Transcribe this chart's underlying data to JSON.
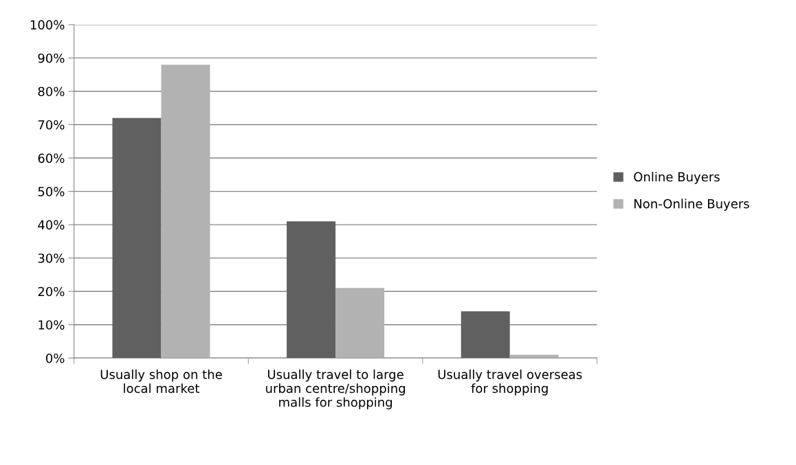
{
  "chart_data": {
    "type": "bar",
    "categories": [
      "Usually shop on the\nlocal market",
      "Usually travel to large\nurban centre/shopping\nmalls for shopping",
      "Usually travel overseas\nfor shopping"
    ],
    "series": [
      {
        "name": "Online Buyers",
        "color": "#606060",
        "values": [
          72,
          41,
          14
        ]
      },
      {
        "name": "Non-Online Buyers",
        "color": "#b2b2b2",
        "values": [
          88,
          21,
          1
        ]
      }
    ],
    "ylim": [
      0,
      100
    ],
    "yticks": [
      {
        "value": 0,
        "label": "0%"
      },
      {
        "value": 10,
        "label": "10%"
      },
      {
        "value": 20,
        "label": "20%"
      },
      {
        "value": 30,
        "label": "30%"
      },
      {
        "value": 40,
        "label": "40%"
      },
      {
        "value": 50,
        "label": "50%"
      },
      {
        "value": 60,
        "label": "60%"
      },
      {
        "value": 70,
        "label": "70%"
      },
      {
        "value": 80,
        "label": "80%"
      },
      {
        "value": 90,
        "label": "90%"
      },
      {
        "value": 100,
        "label": "100%"
      }
    ],
    "grid": "y",
    "legend": "right"
  }
}
